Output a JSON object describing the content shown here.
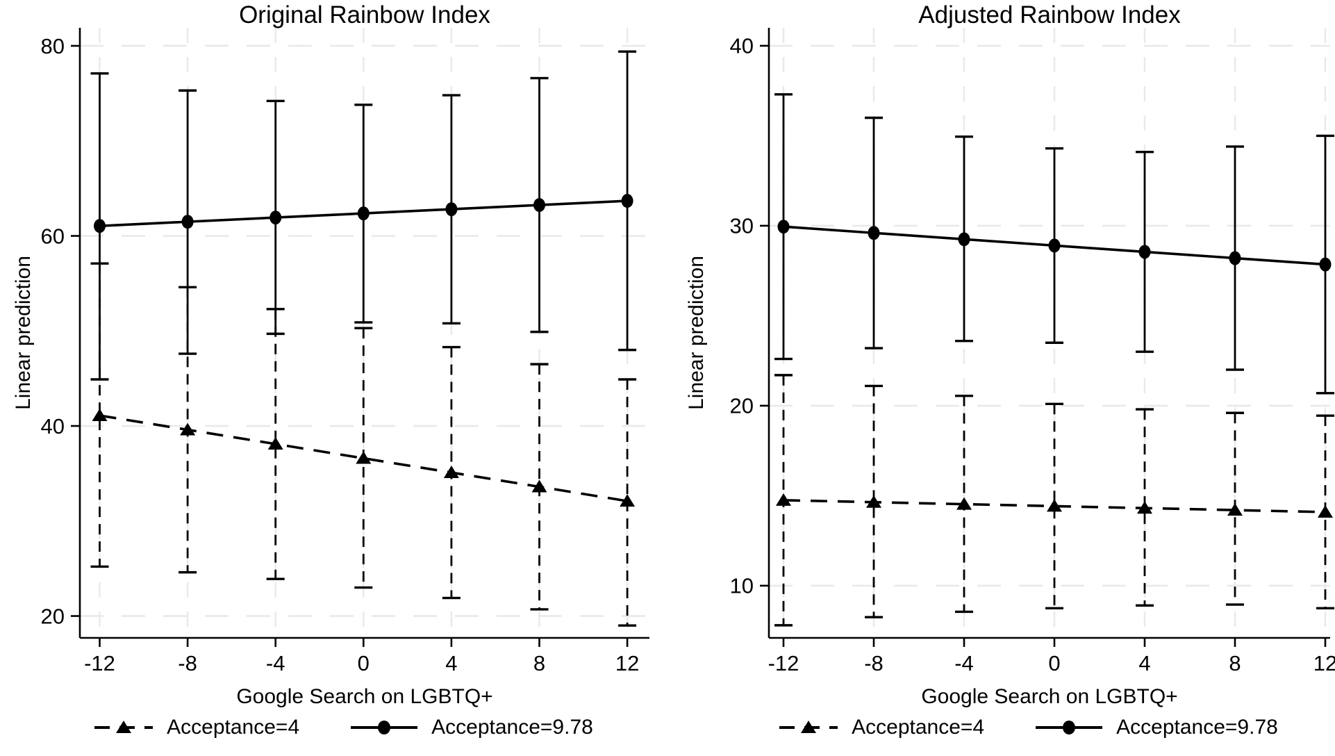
{
  "figure": {
    "background": "#ffffff",
    "text_color": "#000000",
    "grid_color": "#e9e9e9",
    "series_color": "#000000"
  },
  "legend": {
    "items": [
      {
        "label": "Acceptance=4",
        "marker": "triangle",
        "line": "dashed"
      },
      {
        "label": "Acceptance=9.78",
        "marker": "circle",
        "line": "solid"
      }
    ]
  },
  "chart_data": [
    {
      "type": "line",
      "title": "Original Rainbow Index",
      "xlabel": "Google Search on LGBTQ+",
      "ylabel": "Linear prediction",
      "x": [
        -12,
        -8,
        -4,
        0,
        4,
        8,
        12
      ],
      "xticks": [
        "-12",
        "-8",
        "-4",
        "0",
        "4",
        "8",
        "12"
      ],
      "yticks": [
        20,
        40,
        60,
        80
      ],
      "ylim": [
        17.7,
        81.9
      ],
      "grid": true,
      "legend_position": "bottom",
      "series": [
        {
          "name": "Acceptance=4",
          "marker": "triangle",
          "line": "dashed",
          "values": [
            41.1,
            39.6,
            38.1,
            36.6,
            35.1,
            33.6,
            32.1
          ],
          "ci_upper": [
            57.1,
            54.6,
            52.3,
            50.3,
            48.3,
            46.5,
            44.9
          ],
          "ci_lower": [
            25.2,
            24.6,
            23.9,
            23.0,
            21.9,
            20.7,
            19.0
          ]
        },
        {
          "name": "Acceptance=9.78",
          "marker": "circle",
          "line": "solid",
          "values": [
            61.05,
            61.49,
            61.93,
            62.37,
            62.81,
            63.25,
            63.69
          ],
          "ci_upper": [
            77.1,
            75.3,
            74.2,
            73.8,
            74.8,
            76.6,
            79.4
          ],
          "ci_lower": [
            44.9,
            47.6,
            49.7,
            50.9,
            50.8,
            49.9,
            48.0
          ]
        }
      ]
    },
    {
      "type": "line",
      "title": "Adjusted Rainbow Index",
      "xlabel": "Google Search on LGBTQ+",
      "ylabel": "Linear prediction",
      "x": [
        -12,
        -8,
        -4,
        0,
        4,
        8,
        12
      ],
      "xticks": [
        "-12",
        "-8",
        "-4",
        "0",
        "4",
        "8",
        "12"
      ],
      "yticks": [
        10,
        20,
        30,
        40
      ],
      "ylim": [
        7.1,
        41.0
      ],
      "grid": true,
      "legend_position": "bottom",
      "series": [
        {
          "name": "Acceptance=4",
          "marker": "triangle",
          "line": "dashed",
          "values": [
            14.75,
            14.64,
            14.53,
            14.42,
            14.31,
            14.2,
            14.09
          ],
          "ci_upper": [
            21.7,
            21.1,
            20.55,
            20.1,
            19.8,
            19.6,
            19.45
          ],
          "ci_lower": [
            7.8,
            8.25,
            8.55,
            8.75,
            8.9,
            8.95,
            8.75
          ]
        },
        {
          "name": "Acceptance=9.78",
          "marker": "circle",
          "line": "solid",
          "values": [
            29.95,
            29.6,
            29.25,
            28.9,
            28.55,
            28.2,
            27.85
          ],
          "ci_upper": [
            37.3,
            36.0,
            34.95,
            34.3,
            34.1,
            34.4,
            35.0
          ],
          "ci_lower": [
            22.6,
            23.2,
            23.6,
            23.5,
            23.0,
            22.0,
            20.7
          ]
        }
      ]
    }
  ]
}
